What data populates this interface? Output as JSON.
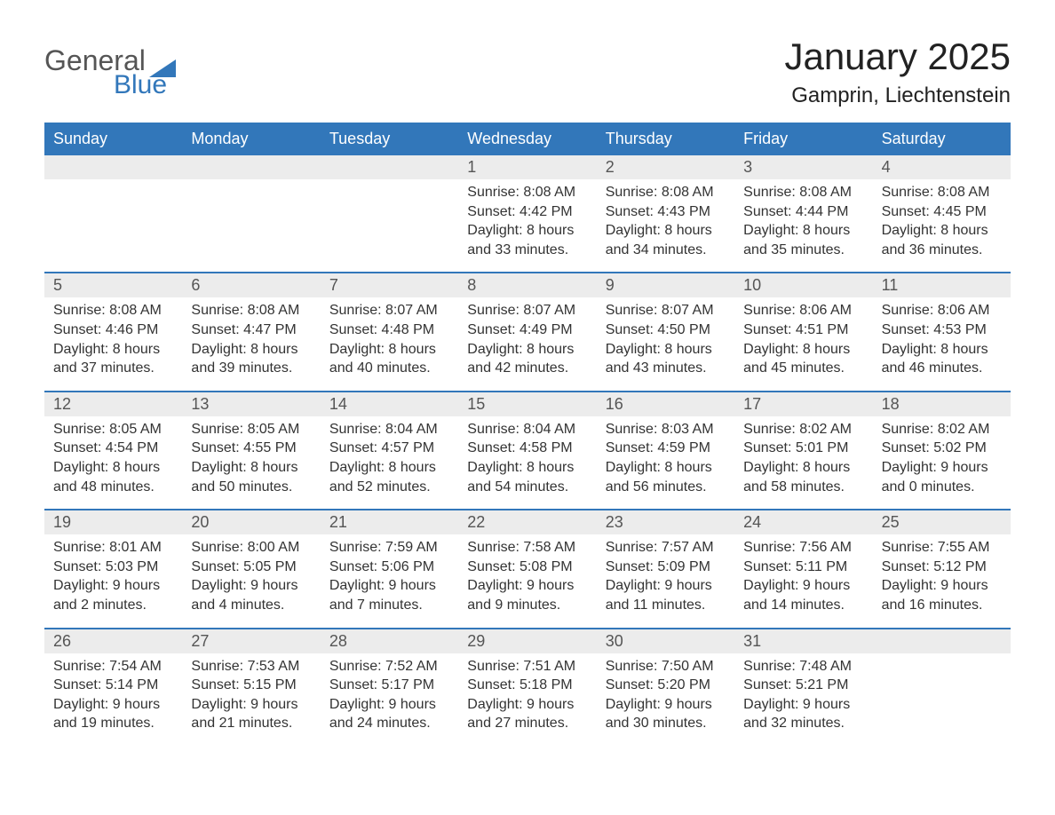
{
  "logo": {
    "text_general": "General",
    "text_blue": "Blue",
    "flag_color": "#3277ba"
  },
  "title": "January 2025",
  "location": "Gamprin, Liechtenstein",
  "colors": {
    "header_bg": "#3277ba",
    "header_text": "#ffffff",
    "daynum_bg": "#ececec",
    "week_border": "#3277ba",
    "body_text": "#333333"
  },
  "typography": {
    "title_fontsize": 42,
    "location_fontsize": 24,
    "weekday_fontsize": 18,
    "daynum_fontsize": 18,
    "body_fontsize": 16
  },
  "weekdays": [
    "Sunday",
    "Monday",
    "Tuesday",
    "Wednesday",
    "Thursday",
    "Friday",
    "Saturday"
  ],
  "weeks": [
    {
      "days": [
        {
          "num": "",
          "sunrise": "",
          "sunset": "",
          "daylight1": "",
          "daylight2": ""
        },
        {
          "num": "",
          "sunrise": "",
          "sunset": "",
          "daylight1": "",
          "daylight2": ""
        },
        {
          "num": "",
          "sunrise": "",
          "sunset": "",
          "daylight1": "",
          "daylight2": ""
        },
        {
          "num": "1",
          "sunrise": "Sunrise: 8:08 AM",
          "sunset": "Sunset: 4:42 PM",
          "daylight1": "Daylight: 8 hours",
          "daylight2": "and 33 minutes."
        },
        {
          "num": "2",
          "sunrise": "Sunrise: 8:08 AM",
          "sunset": "Sunset: 4:43 PM",
          "daylight1": "Daylight: 8 hours",
          "daylight2": "and 34 minutes."
        },
        {
          "num": "3",
          "sunrise": "Sunrise: 8:08 AM",
          "sunset": "Sunset: 4:44 PM",
          "daylight1": "Daylight: 8 hours",
          "daylight2": "and 35 minutes."
        },
        {
          "num": "4",
          "sunrise": "Sunrise: 8:08 AM",
          "sunset": "Sunset: 4:45 PM",
          "daylight1": "Daylight: 8 hours",
          "daylight2": "and 36 minutes."
        }
      ]
    },
    {
      "days": [
        {
          "num": "5",
          "sunrise": "Sunrise: 8:08 AM",
          "sunset": "Sunset: 4:46 PM",
          "daylight1": "Daylight: 8 hours",
          "daylight2": "and 37 minutes."
        },
        {
          "num": "6",
          "sunrise": "Sunrise: 8:08 AM",
          "sunset": "Sunset: 4:47 PM",
          "daylight1": "Daylight: 8 hours",
          "daylight2": "and 39 minutes."
        },
        {
          "num": "7",
          "sunrise": "Sunrise: 8:07 AM",
          "sunset": "Sunset: 4:48 PM",
          "daylight1": "Daylight: 8 hours",
          "daylight2": "and 40 minutes."
        },
        {
          "num": "8",
          "sunrise": "Sunrise: 8:07 AM",
          "sunset": "Sunset: 4:49 PM",
          "daylight1": "Daylight: 8 hours",
          "daylight2": "and 42 minutes."
        },
        {
          "num": "9",
          "sunrise": "Sunrise: 8:07 AM",
          "sunset": "Sunset: 4:50 PM",
          "daylight1": "Daylight: 8 hours",
          "daylight2": "and 43 minutes."
        },
        {
          "num": "10",
          "sunrise": "Sunrise: 8:06 AM",
          "sunset": "Sunset: 4:51 PM",
          "daylight1": "Daylight: 8 hours",
          "daylight2": "and 45 minutes."
        },
        {
          "num": "11",
          "sunrise": "Sunrise: 8:06 AM",
          "sunset": "Sunset: 4:53 PM",
          "daylight1": "Daylight: 8 hours",
          "daylight2": "and 46 minutes."
        }
      ]
    },
    {
      "days": [
        {
          "num": "12",
          "sunrise": "Sunrise: 8:05 AM",
          "sunset": "Sunset: 4:54 PM",
          "daylight1": "Daylight: 8 hours",
          "daylight2": "and 48 minutes."
        },
        {
          "num": "13",
          "sunrise": "Sunrise: 8:05 AM",
          "sunset": "Sunset: 4:55 PM",
          "daylight1": "Daylight: 8 hours",
          "daylight2": "and 50 minutes."
        },
        {
          "num": "14",
          "sunrise": "Sunrise: 8:04 AM",
          "sunset": "Sunset: 4:57 PM",
          "daylight1": "Daylight: 8 hours",
          "daylight2": "and 52 minutes."
        },
        {
          "num": "15",
          "sunrise": "Sunrise: 8:04 AM",
          "sunset": "Sunset: 4:58 PM",
          "daylight1": "Daylight: 8 hours",
          "daylight2": "and 54 minutes."
        },
        {
          "num": "16",
          "sunrise": "Sunrise: 8:03 AM",
          "sunset": "Sunset: 4:59 PM",
          "daylight1": "Daylight: 8 hours",
          "daylight2": "and 56 minutes."
        },
        {
          "num": "17",
          "sunrise": "Sunrise: 8:02 AM",
          "sunset": "Sunset: 5:01 PM",
          "daylight1": "Daylight: 8 hours",
          "daylight2": "and 58 minutes."
        },
        {
          "num": "18",
          "sunrise": "Sunrise: 8:02 AM",
          "sunset": "Sunset: 5:02 PM",
          "daylight1": "Daylight: 9 hours",
          "daylight2": "and 0 minutes."
        }
      ]
    },
    {
      "days": [
        {
          "num": "19",
          "sunrise": "Sunrise: 8:01 AM",
          "sunset": "Sunset: 5:03 PM",
          "daylight1": "Daylight: 9 hours",
          "daylight2": "and 2 minutes."
        },
        {
          "num": "20",
          "sunrise": "Sunrise: 8:00 AM",
          "sunset": "Sunset: 5:05 PM",
          "daylight1": "Daylight: 9 hours",
          "daylight2": "and 4 minutes."
        },
        {
          "num": "21",
          "sunrise": "Sunrise: 7:59 AM",
          "sunset": "Sunset: 5:06 PM",
          "daylight1": "Daylight: 9 hours",
          "daylight2": "and 7 minutes."
        },
        {
          "num": "22",
          "sunrise": "Sunrise: 7:58 AM",
          "sunset": "Sunset: 5:08 PM",
          "daylight1": "Daylight: 9 hours",
          "daylight2": "and 9 minutes."
        },
        {
          "num": "23",
          "sunrise": "Sunrise: 7:57 AM",
          "sunset": "Sunset: 5:09 PM",
          "daylight1": "Daylight: 9 hours",
          "daylight2": "and 11 minutes."
        },
        {
          "num": "24",
          "sunrise": "Sunrise: 7:56 AM",
          "sunset": "Sunset: 5:11 PM",
          "daylight1": "Daylight: 9 hours",
          "daylight2": "and 14 minutes."
        },
        {
          "num": "25",
          "sunrise": "Sunrise: 7:55 AM",
          "sunset": "Sunset: 5:12 PM",
          "daylight1": "Daylight: 9 hours",
          "daylight2": "and 16 minutes."
        }
      ]
    },
    {
      "days": [
        {
          "num": "26",
          "sunrise": "Sunrise: 7:54 AM",
          "sunset": "Sunset: 5:14 PM",
          "daylight1": "Daylight: 9 hours",
          "daylight2": "and 19 minutes."
        },
        {
          "num": "27",
          "sunrise": "Sunrise: 7:53 AM",
          "sunset": "Sunset: 5:15 PM",
          "daylight1": "Daylight: 9 hours",
          "daylight2": "and 21 minutes."
        },
        {
          "num": "28",
          "sunrise": "Sunrise: 7:52 AM",
          "sunset": "Sunset: 5:17 PM",
          "daylight1": "Daylight: 9 hours",
          "daylight2": "and 24 minutes."
        },
        {
          "num": "29",
          "sunrise": "Sunrise: 7:51 AM",
          "sunset": "Sunset: 5:18 PM",
          "daylight1": "Daylight: 9 hours",
          "daylight2": "and 27 minutes."
        },
        {
          "num": "30",
          "sunrise": "Sunrise: 7:50 AM",
          "sunset": "Sunset: 5:20 PM",
          "daylight1": "Daylight: 9 hours",
          "daylight2": "and 30 minutes."
        },
        {
          "num": "31",
          "sunrise": "Sunrise: 7:48 AM",
          "sunset": "Sunset: 5:21 PM",
          "daylight1": "Daylight: 9 hours",
          "daylight2": "and 32 minutes."
        },
        {
          "num": "",
          "sunrise": "",
          "sunset": "",
          "daylight1": "",
          "daylight2": ""
        }
      ]
    }
  ]
}
